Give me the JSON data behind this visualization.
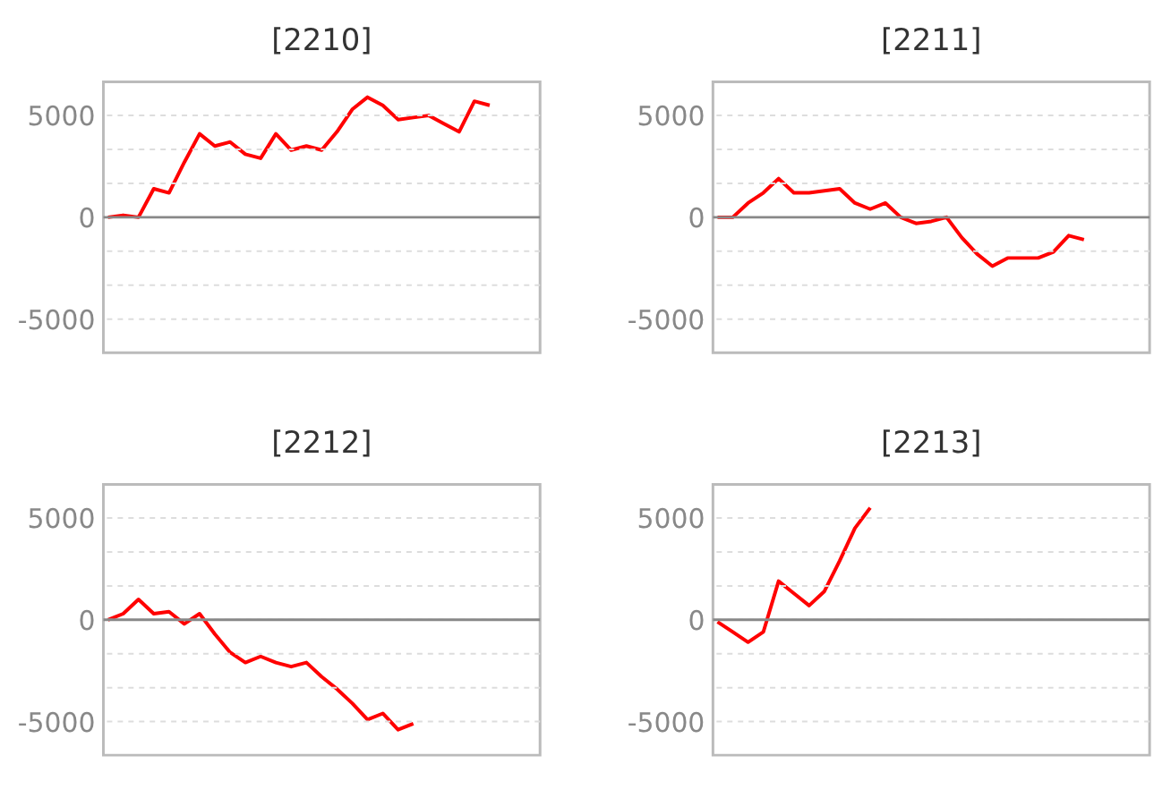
{
  "chart_data": [
    {
      "type": "line",
      "title": "[2210]",
      "categories": [
        null,
        null,
        null,
        null,
        null,
        null,
        null,
        null,
        null,
        null,
        null,
        null,
        null,
        null,
        null,
        null,
        null,
        null,
        null,
        null,
        null,
        null,
        null,
        null,
        null,
        null,
        null,
        null,
        null
      ],
      "values": [
        0,
        100,
        0,
        1400,
        1200,
        2700,
        4100,
        3500,
        3700,
        3100,
        2900,
        4100,
        3300,
        3500,
        3300,
        4200,
        5300,
        5900,
        5500,
        4800,
        4900,
        5000,
        4600,
        4200,
        5700,
        5500,
        null,
        null,
        null
      ],
      "color": "#ff0000",
      "ylim": [
        -6650,
        6650
      ],
      "yticks": [
        -5000,
        {
          "value": -3333,
          "label": null
        },
        {
          "value": -1667,
          "label": null
        },
        0,
        {
          "value": 1667,
          "label": null
        },
        {
          "value": 3333,
          "label": null
        },
        5000
      ],
      "grid": "y",
      "ref_lines": [
        {
          "axis": "y",
          "value": 0,
          "color": "#888888"
        }
      ]
    },
    {
      "type": "line",
      "title": "[2211]",
      "categories": [
        null,
        null,
        null,
        null,
        null,
        null,
        null,
        null,
        null,
        null,
        null,
        null,
        null,
        null,
        null,
        null,
        null,
        null,
        null,
        null,
        null,
        null,
        null,
        null,
        null,
        null,
        null,
        null,
        null
      ],
      "values": [
        0,
        0,
        700,
        1200,
        1900,
        1200,
        1200,
        1300,
        1400,
        700,
        400,
        700,
        0,
        -300,
        -200,
        0,
        -1000,
        -1800,
        -2400,
        -2000,
        -2000,
        -2000,
        -1700,
        -900,
        -1100,
        null,
        null,
        null,
        null
      ],
      "color": "#ff0000",
      "ylim": [
        -6650,
        6650
      ],
      "yticks": [
        -5000,
        {
          "value": -3333,
          "label": null
        },
        {
          "value": -1667,
          "label": null
        },
        0,
        {
          "value": 1667,
          "label": null
        },
        {
          "value": 3333,
          "label": null
        },
        5000
      ],
      "grid": "y",
      "ref_lines": [
        {
          "axis": "y",
          "value": 0,
          "color": "#888888"
        }
      ]
    },
    {
      "type": "line",
      "title": "[2212]",
      "categories": [
        null,
        null,
        null,
        null,
        null,
        null,
        null,
        null,
        null,
        null,
        null,
        null,
        null,
        null,
        null,
        null,
        null,
        null,
        null,
        null,
        null,
        null,
        null,
        null,
        null,
        null,
        null,
        null,
        null
      ],
      "values": [
        0,
        300,
        1000,
        300,
        400,
        -200,
        300,
        -700,
        -1600,
        -2100,
        -1800,
        -2100,
        -2300,
        -2100,
        -2800,
        -3400,
        -4100,
        -4900,
        -4600,
        -5400,
        -5100,
        null,
        null,
        null,
        null,
        null,
        null,
        null,
        null
      ],
      "color": "#ff0000",
      "ylim": [
        -6650,
        6650
      ],
      "yticks": [
        -5000,
        {
          "value": -3333,
          "label": null
        },
        {
          "value": -1667,
          "label": null
        },
        0,
        {
          "value": 1667,
          "label": null
        },
        {
          "value": 3333,
          "label": null
        },
        5000
      ],
      "grid": "y",
      "ref_lines": [
        {
          "axis": "y",
          "value": 0,
          "color": "#888888"
        }
      ]
    },
    {
      "type": "line",
      "title": "[2213]",
      "categories": [
        null,
        null,
        null,
        null,
        null,
        null,
        null,
        null,
        null,
        null,
        null,
        null,
        null,
        null,
        null,
        null,
        null,
        null,
        null,
        null,
        null,
        null,
        null,
        null,
        null,
        null,
        null,
        null,
        null
      ],
      "values": [
        -100,
        -600,
        -1100,
        -600,
        1900,
        1300,
        700,
        1400,
        2900,
        4500,
        5500,
        null,
        null,
        null,
        null,
        null,
        null,
        null,
        null,
        null,
        null,
        null,
        null,
        null,
        null,
        null,
        null,
        null,
        null
      ],
      "color": "#ff0000",
      "ylim": [
        -6650,
        6650
      ],
      "yticks": [
        -5000,
        {
          "value": -3333,
          "label": null
        },
        {
          "value": -1667,
          "label": null
        },
        0,
        {
          "value": 1667,
          "label": null
        },
        {
          "value": 3333,
          "label": null
        },
        5000
      ],
      "grid": "y",
      "ref_lines": [
        {
          "axis": "y",
          "value": 0,
          "color": "#888888"
        }
      ]
    }
  ]
}
